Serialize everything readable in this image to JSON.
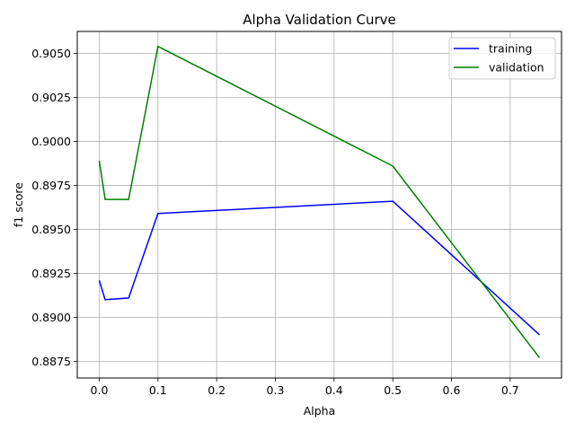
{
  "chart_data": {
    "type": "line",
    "title": "Alpha Validation Curve",
    "xlabel": "Alpha",
    "ylabel": "f1 score",
    "xlim": [
      -0.0375,
      0.7875
    ],
    "ylim": [
      0.88655,
      0.90625
    ],
    "xticks": [
      0.0,
      0.1,
      0.2,
      0.3,
      0.4,
      0.5,
      0.6,
      0.7
    ],
    "xtick_labels": [
      "0.0",
      "0.1",
      "0.2",
      "0.3",
      "0.4",
      "0.5",
      "0.6",
      "0.7"
    ],
    "yticks": [
      0.8875,
      0.89,
      0.8925,
      0.895,
      0.8975,
      0.9,
      0.9025,
      0.905
    ],
    "ytick_labels": [
      "0.8875",
      "0.8900",
      "0.8925",
      "0.8950",
      "0.8975",
      "0.9000",
      "0.9025",
      "0.9050"
    ],
    "grid": true,
    "legend_position": "top-right",
    "x": [
      0.0,
      0.01,
      0.05,
      0.1,
      0.5,
      0.75
    ],
    "series": [
      {
        "name": "training",
        "color": "#0000ff",
        "values": [
          0.8921,
          0.891,
          0.8911,
          0.8959,
          0.8966,
          0.889
        ]
      },
      {
        "name": "validation",
        "color": "#008000",
        "values": [
          0.8989,
          0.8967,
          0.8967,
          0.9054,
          0.8986,
          0.8877
        ]
      }
    ]
  }
}
